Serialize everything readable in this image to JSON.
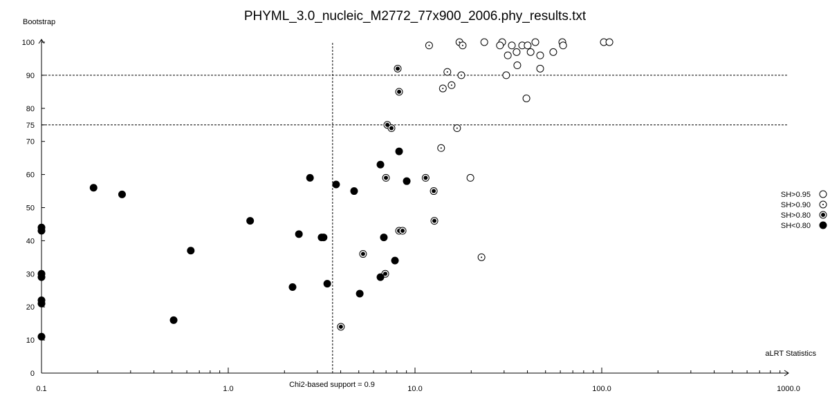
{
  "chart_data": {
    "type": "scatter",
    "title": "PHYML_3.0_nucleic_M2772_77x900_2006.phy_results.txt",
    "xlabel": "aLRT Statistics",
    "ylabel": "Bootstrap",
    "xscale": "log",
    "xlim": [
      0.1,
      1000.0
    ],
    "ylim": [
      0,
      100
    ],
    "x_ticks": [
      "0.1",
      "1.0",
      "10.0",
      "100.0",
      "1000.0"
    ],
    "y_ticks": [
      "0",
      "10",
      "20",
      "30",
      "40",
      "50",
      "60",
      "70",
      "75",
      "80",
      "90",
      "100"
    ],
    "reference_lines": {
      "vertical": {
        "x": 3.62,
        "label": "Chi2-based support = 0.9"
      },
      "horizontal": [
        90,
        75
      ]
    },
    "legend": {
      "placement": "right",
      "entries": [
        {
          "key": "a",
          "label": "SH>0.95",
          "marker": "open-circle"
        },
        {
          "key": "b",
          "label": "SH>0.90",
          "marker": "dotted-circle"
        },
        {
          "key": "c",
          "label": "SH>0.80",
          "marker": "ringed-dot"
        },
        {
          "key": "d",
          "label": "SH<0.80",
          "marker": "filled-circle"
        }
      ]
    },
    "points": [
      {
        "x": 11.9,
        "y": 99,
        "s": "b"
      },
      {
        "x": 17.3,
        "y": 100,
        "s": "b"
      },
      {
        "x": 18.0,
        "y": 99,
        "s": "b"
      },
      {
        "x": 23.5,
        "y": 100,
        "s": "a"
      },
      {
        "x": 29.3,
        "y": 100,
        "s": "a"
      },
      {
        "x": 28.5,
        "y": 99,
        "s": "a"
      },
      {
        "x": 33.0,
        "y": 99,
        "s": "a"
      },
      {
        "x": 37.5,
        "y": 99,
        "s": "a"
      },
      {
        "x": 40.1,
        "y": 99,
        "s": "a"
      },
      {
        "x": 44.1,
        "y": 100,
        "s": "a"
      },
      {
        "x": 61.5,
        "y": 100,
        "s": "a"
      },
      {
        "x": 62.1,
        "y": 99,
        "s": "a"
      },
      {
        "x": 102.6,
        "y": 100,
        "s": "a"
      },
      {
        "x": 109.9,
        "y": 100,
        "s": "a"
      },
      {
        "x": 31.4,
        "y": 96,
        "s": "a"
      },
      {
        "x": 35.0,
        "y": 97,
        "s": "a"
      },
      {
        "x": 41.6,
        "y": 97,
        "s": "a"
      },
      {
        "x": 46.8,
        "y": 96,
        "s": "a"
      },
      {
        "x": 55.0,
        "y": 97,
        "s": "a"
      },
      {
        "x": 35.3,
        "y": 93,
        "s": "a"
      },
      {
        "x": 46.8,
        "y": 92,
        "s": "a"
      },
      {
        "x": 8.08,
        "y": 92,
        "s": "c"
      },
      {
        "x": 14.9,
        "y": 91,
        "s": "b"
      },
      {
        "x": 17.7,
        "y": 90,
        "s": "b"
      },
      {
        "x": 30.8,
        "y": 90,
        "s": "a"
      },
      {
        "x": 8.22,
        "y": 85,
        "s": "c"
      },
      {
        "x": 14.1,
        "y": 86,
        "s": "b"
      },
      {
        "x": 15.7,
        "y": 87,
        "s": "b"
      },
      {
        "x": 39.5,
        "y": 83,
        "s": "a"
      },
      {
        "x": 7.11,
        "y": 75,
        "s": "c"
      },
      {
        "x": 7.48,
        "y": 74,
        "s": "c"
      },
      {
        "x": 16.8,
        "y": 74,
        "s": "b"
      },
      {
        "x": 13.8,
        "y": 68,
        "s": "b"
      },
      {
        "x": 8.22,
        "y": 67,
        "s": "d"
      },
      {
        "x": 6.53,
        "y": 63,
        "s": "d"
      },
      {
        "x": 2.74,
        "y": 59,
        "s": "d"
      },
      {
        "x": 6.99,
        "y": 59,
        "s": "c"
      },
      {
        "x": 11.4,
        "y": 59,
        "s": "c"
      },
      {
        "x": 19.8,
        "y": 59,
        "s": "a"
      },
      {
        "x": 3.78,
        "y": 57,
        "s": "d"
      },
      {
        "x": 9.03,
        "y": 58,
        "s": "d"
      },
      {
        "x": 4.72,
        "y": 55,
        "s": "d"
      },
      {
        "x": 12.6,
        "y": 55,
        "s": "c"
      },
      {
        "x": 12.7,
        "y": 46,
        "s": "c"
      },
      {
        "x": 2.39,
        "y": 42,
        "s": "d"
      },
      {
        "x": 3.16,
        "y": 41,
        "s": "d"
      },
      {
        "x": 3.24,
        "y": 41,
        "s": "d"
      },
      {
        "x": 8.22,
        "y": 43,
        "s": "c"
      },
      {
        "x": 8.58,
        "y": 43,
        "s": "c"
      },
      {
        "x": 6.81,
        "y": 41,
        "s": "d"
      },
      {
        "x": 5.27,
        "y": 36,
        "s": "c"
      },
      {
        "x": 22.7,
        "y": 35,
        "s": "b"
      },
      {
        "x": 7.81,
        "y": 34,
        "s": "d"
      },
      {
        "x": 6.93,
        "y": 30,
        "s": "c"
      },
      {
        "x": 6.53,
        "y": 29,
        "s": "d"
      },
      {
        "x": 2.21,
        "y": 26,
        "s": "d"
      },
      {
        "x": 3.39,
        "y": 27,
        "s": "d"
      },
      {
        "x": 5.06,
        "y": 24,
        "s": "d"
      },
      {
        "x": 4.01,
        "y": 14,
        "s": "c"
      },
      {
        "x": 0.19,
        "y": 56,
        "s": "d"
      },
      {
        "x": 0.27,
        "y": 54,
        "s": "d"
      },
      {
        "x": 1.31,
        "y": 46,
        "s": "d"
      },
      {
        "x": 0.63,
        "y": 37,
        "s": "d"
      },
      {
        "x": 0.51,
        "y": 16,
        "s": "d"
      },
      {
        "x": 0.1,
        "y": 44,
        "s": "d"
      },
      {
        "x": 0.1,
        "y": 43,
        "s": "d"
      },
      {
        "x": 0.1,
        "y": 30,
        "s": "d"
      },
      {
        "x": 0.1,
        "y": 29,
        "s": "d"
      },
      {
        "x": 0.1,
        "y": 22,
        "s": "d"
      },
      {
        "x": 0.1,
        "y": 21,
        "s": "d"
      },
      {
        "x": 0.1,
        "y": 11,
        "s": "d"
      }
    ]
  }
}
